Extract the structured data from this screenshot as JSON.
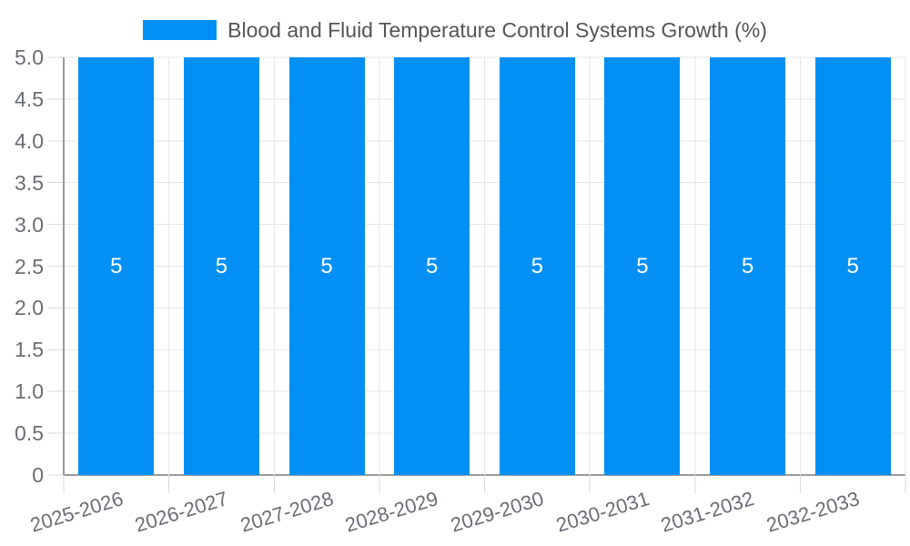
{
  "legend": {
    "label": "Blood and Fluid Temperature Control Systems Growth (%)",
    "swatch_color": "#0390f5",
    "text_color": "#555555"
  },
  "chart_data": {
    "type": "bar",
    "title": "",
    "categories": [
      "2025-2026",
      "2026-2027",
      "2027-2028",
      "2028-2029",
      "2029-2030",
      "2030-2031",
      "2031-2032",
      "2032-2033"
    ],
    "series": [
      {
        "name": "Blood and Fluid Temperature Control Systems Growth (%)",
        "values": [
          5,
          5,
          5,
          5,
          5,
          5,
          5,
          5
        ],
        "color": "#0390f5",
        "bar_labels": [
          "5",
          "5",
          "5",
          "5",
          "5",
          "5",
          "5",
          "5"
        ],
        "bar_label_position": "inside-center",
        "bar_label_color": "#ffffff"
      }
    ],
    "xlabel": "",
    "ylabel": "",
    "ylim": [
      0,
      5
    ],
    "ytick_step": 0.5,
    "ytick_labels": [
      "0",
      "0.5",
      "1.0",
      "1.5",
      "2.0",
      "2.5",
      "3.0",
      "3.5",
      "4.0",
      "4.5",
      "5.0"
    ],
    "xtick_label_rotation_deg": -17,
    "grid": true,
    "legend_position": "top-center",
    "colors": {
      "grid_line": "#e6e6e6",
      "axis_line": "#9a9a9a",
      "tick_line": "#d9d9d9",
      "axis_label": "#6a6d74",
      "background": "#ffffff"
    }
  }
}
